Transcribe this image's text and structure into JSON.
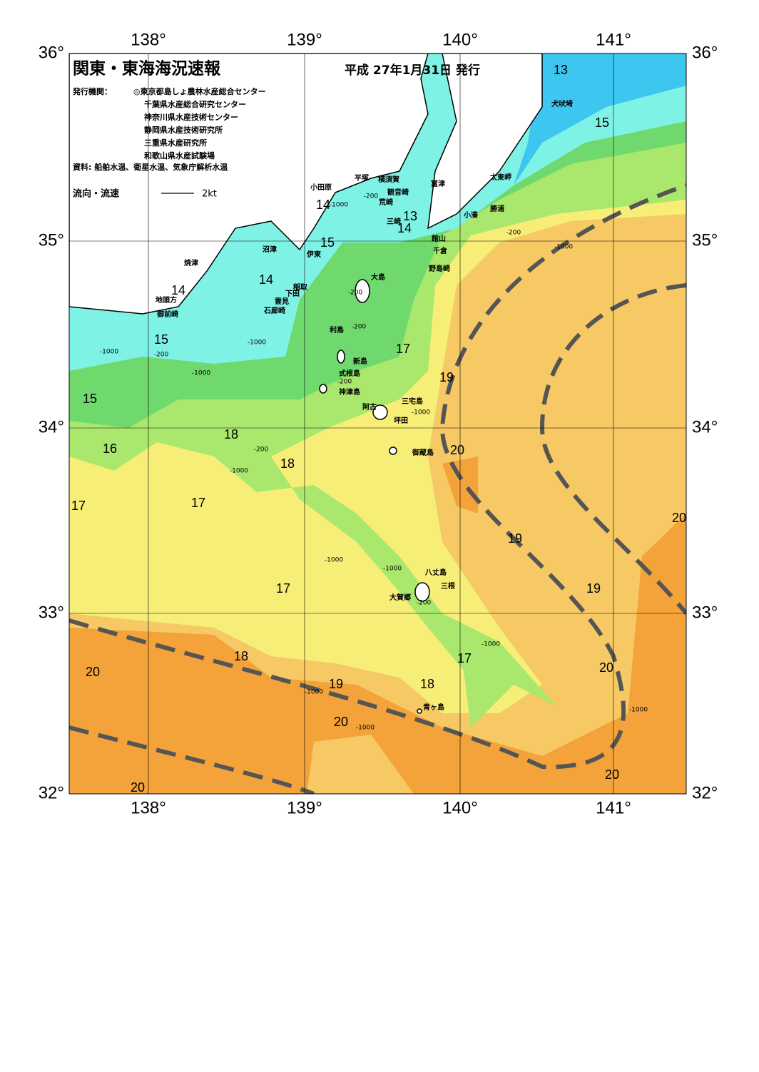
{
  "header": {
    "title": "関東・東海海況速報",
    "date": "平成 27年1月31日 発行",
    "issuer_label": "発行機関：",
    "issuers": [
      "◎東京都島しょ農林水産総合センター",
      "千葉県水産総合研究センター",
      "神奈川県水産技術センター",
      "静岡県水産技術研究所",
      "三重県水産研究所",
      "和歌山県水産試験場"
    ],
    "source": "資料: 船舶水温、衛星水温、気象庁解析水温",
    "legend_label": "流向・流速",
    "legend_scale": "2kt"
  },
  "axes": {
    "top": [
      "138°",
      "139°",
      "140°",
      "141°"
    ],
    "bottom": [
      "138°",
      "139°",
      "140°",
      "141°"
    ],
    "left": [
      "36°",
      "35°",
      "34°",
      "33°",
      "32°"
    ],
    "right": [
      "36°",
      "35°",
      "34°",
      "33°",
      "32°"
    ]
  },
  "places": [
    "小田原",
    "平塚",
    "横須賀",
    "富津",
    "観音崎",
    "荒崎",
    "三崎",
    "館山",
    "千倉",
    "野島崎",
    "小湊",
    "勝浦",
    "太東岬",
    "犬吠埼",
    "沼津",
    "伊東",
    "焼津",
    "稲取",
    "下田",
    "雲見",
    "石廊崎",
    "地頭方",
    "御前崎",
    "大島",
    "利島",
    "新島",
    "式根島",
    "神津島",
    "三宅島",
    "阿古",
    "坪田",
    "御蔵島",
    "八丈島",
    "三根",
    "大賀郷",
    "青ヶ島"
  ],
  "isotherm_labels": [
    "13",
    "13",
    "14",
    "14",
    "15",
    "14",
    "14",
    "15",
    "15",
    "16",
    "17",
    "17",
    "18",
    "18",
    "17",
    "18",
    "19",
    "20",
    "20",
    "20",
    "17",
    "19",
    "20",
    "19",
    "19",
    "20",
    "20",
    "20",
    "17",
    "18",
    "15"
  ],
  "depth_labels": [
    "-200",
    "-200",
    "-200",
    "-200",
    "-200",
    "-200",
    "-200",
    "-200",
    "-1000",
    "-1000",
    "-1000",
    "-1000",
    "-1000",
    "-1000",
    "-1000",
    "-1000",
    "-1000",
    "-1000",
    "-1000",
    "-1000",
    "-1000"
  ]
}
